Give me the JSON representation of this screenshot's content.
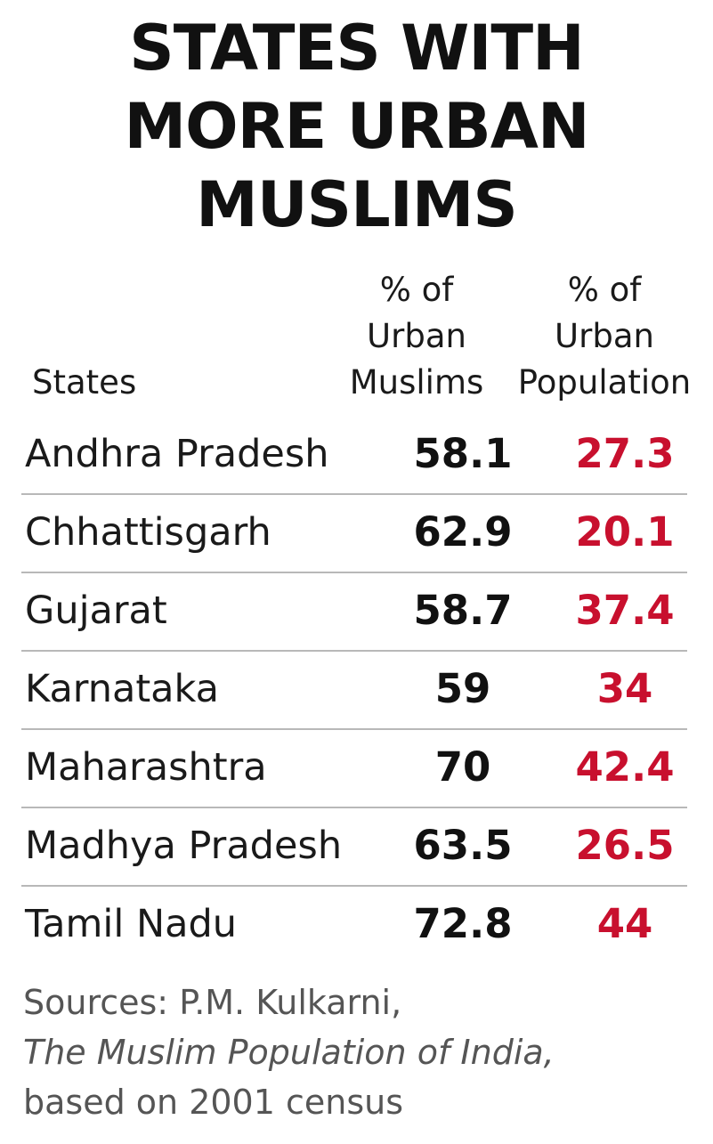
{
  "chart_data": {
    "type": "table",
    "title_lines": [
      "STATES WITH",
      "MORE URBAN",
      "MUSLIMS"
    ],
    "columns": [
      {
        "key": "state",
        "label": "States"
      },
      {
        "key": "urban_muslims",
        "label_lines": [
          "% of",
          "Urban",
          "Muslims"
        ]
      },
      {
        "key": "urban_population",
        "label_lines": [
          "% of",
          "Urban",
          "Population"
        ]
      }
    ],
    "rows": [
      {
        "state": "Andhra Pradesh",
        "urban_muslims": "58.1",
        "urban_population": "27.3"
      },
      {
        "state": "Chhattisgarh",
        "urban_muslims": "62.9",
        "urban_population": "20.1"
      },
      {
        "state": "Gujarat",
        "urban_muslims": "58.7",
        "urban_population": "37.4"
      },
      {
        "state": "Karnataka",
        "urban_muslims": "59",
        "urban_population": "34"
      },
      {
        "state": "Maharashtra",
        "urban_muslims": "70",
        "urban_population": "42.4"
      },
      {
        "state": "Madhya Pradesh",
        "urban_muslims": "63.5",
        "urban_population": "26.5"
      },
      {
        "state": "Tamil Nadu",
        "urban_muslims": "72.8",
        "urban_population": "44"
      }
    ],
    "source_lines": [
      "Sources: P.M. Kulkarni,",
      "The Muslim Population of India,",
      "based on 2001 census"
    ],
    "colors": {
      "muslims_value": "#111111",
      "population_value": "#c8102e",
      "divider": "#b8b8b8"
    }
  }
}
